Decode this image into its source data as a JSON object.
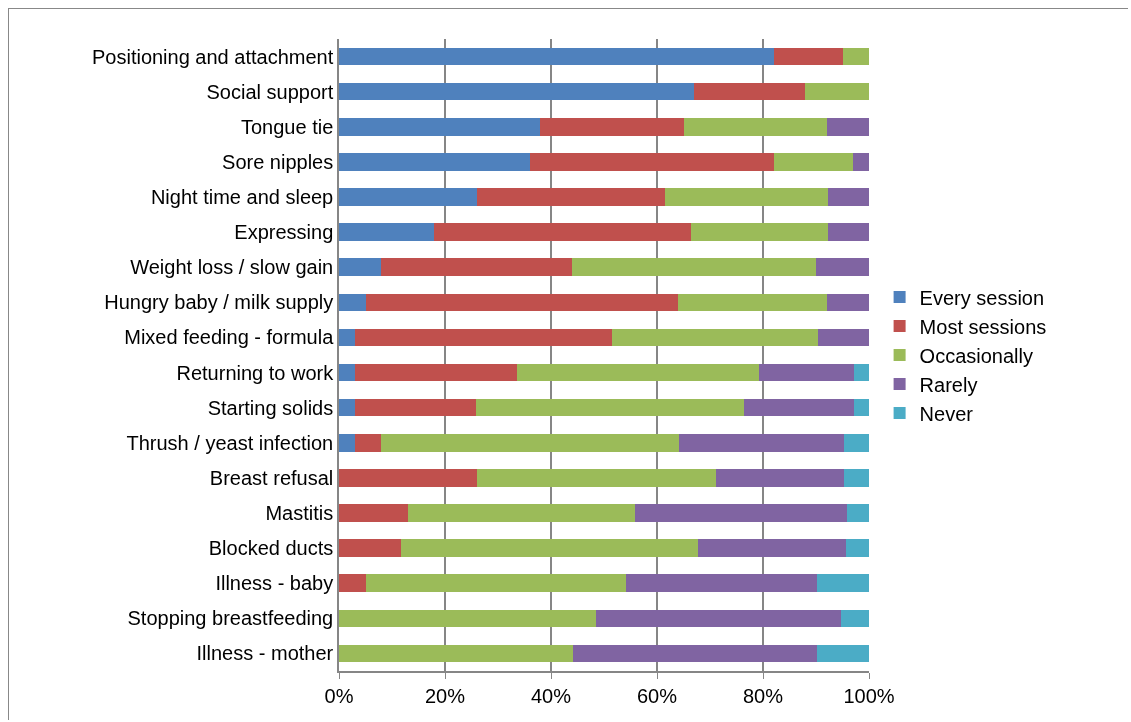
{
  "chart_data": {
    "type": "bar",
    "orientation": "horizontal",
    "stacked": true,
    "categories": [
      "Positioning and attachment",
      "Social support",
      "Tongue tie",
      "Sore nipples",
      "Night time and sleep",
      "Expressing",
      "Weight loss / slow gain",
      "Hungry baby / milk supply",
      "Mixed feeding - formula",
      "Returning to work",
      "Starting solids",
      "Thrush / yeast infection",
      "Breast refusal",
      "Mastitis",
      "Blocked ducts",
      "Illness - baby",
      "Stopping breastfeeding",
      "Illness - mother"
    ],
    "series": [
      {
        "name": "Every session",
        "color": "#4f81bd",
        "values": [
          82,
          67,
          38,
          36,
          26,
          18,
          8,
          5,
          3,
          3,
          3,
          3,
          0,
          0,
          0,
          0,
          0,
          0
        ]
      },
      {
        "name": "Most sessions",
        "color": "#c0504d",
        "values": [
          13,
          21,
          27,
          46,
          35.5,
          48.5,
          36,
          59,
          48.5,
          30.6,
          22.8,
          5,
          26,
          13,
          11.7,
          5,
          0,
          0
        ]
      },
      {
        "name": "Occasionally",
        "color": "#9bbb59",
        "values": [
          5,
          12,
          27,
          15,
          30.7,
          25.8,
          46,
          28,
          38.8,
          45.7,
          50.7,
          56.1,
          45.1,
          42.8,
          56,
          49.1,
          48.5,
          44.1
        ]
      },
      {
        "name": "Rarely",
        "color": "#8064a2",
        "values": [
          0,
          0,
          8,
          3,
          7.8,
          7.7,
          10,
          8,
          9.7,
          17.8,
          20.7,
          31.1,
          24.1,
          40,
          27.9,
          36,
          46.3,
          46
        ]
      },
      {
        "name": "Never",
        "color": "#4bacc6",
        "values": [
          0,
          0,
          0,
          0,
          0,
          0,
          0,
          0,
          0,
          2.9,
          2.8,
          4.8,
          4.8,
          4.2,
          4.4,
          9.9,
          5.2,
          9.9
        ]
      }
    ],
    "xlim": [
      0,
      100
    ],
    "xticks": [
      {
        "value": 0,
        "label": "0%"
      },
      {
        "value": 20,
        "label": "20%"
      },
      {
        "value": 40,
        "label": "40%"
      },
      {
        "value": 60,
        "label": "60%"
      },
      {
        "value": 80,
        "label": "80%"
      },
      {
        "value": 100,
        "label": "100%"
      }
    ],
    "grid": "x",
    "legend": "right"
  }
}
